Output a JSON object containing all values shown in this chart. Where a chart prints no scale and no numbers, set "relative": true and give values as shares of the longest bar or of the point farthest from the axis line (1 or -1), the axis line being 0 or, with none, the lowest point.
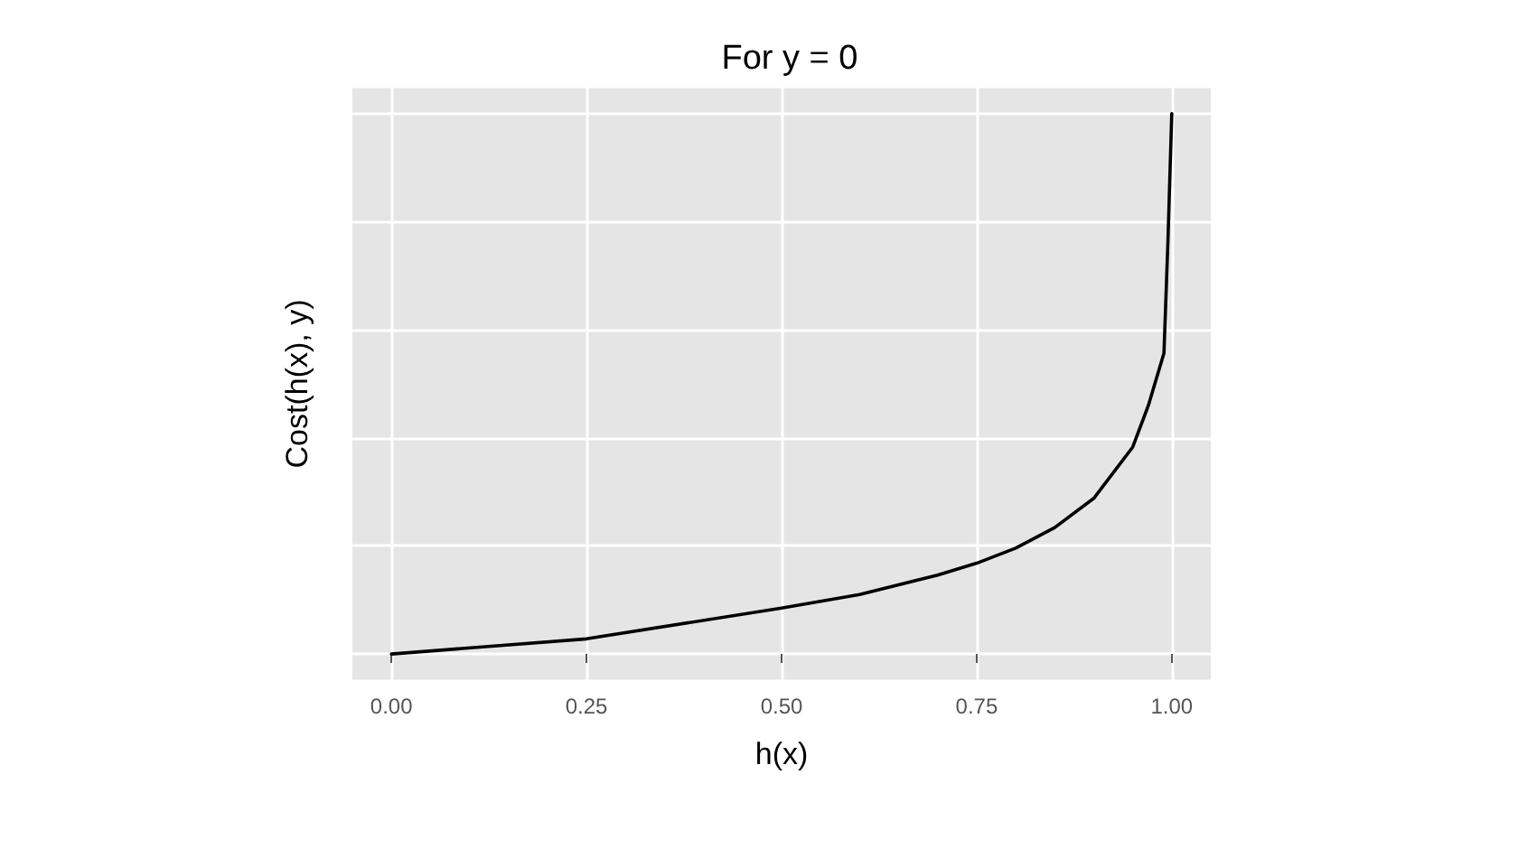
{
  "chart_data": {
    "type": "line",
    "title": "For y = 0",
    "xlabel": "h(x)",
    "ylabel": "Cost(h(x), y)",
    "relative": true,
    "grid": true,
    "marker": "none",
    "line_style": "solid",
    "xlim": [
      -0.05,
      1.05
    ],
    "xticks": [
      {
        "value": 0,
        "label": "0.00"
      },
      {
        "value": 0.25,
        "label": "0.25"
      },
      {
        "value": 0.5,
        "label": "0.50"
      },
      {
        "value": 0.75,
        "label": "0.75"
      },
      {
        "value": 1,
        "label": "1.00"
      }
    ],
    "x": [
      0,
      0.25,
      0.5,
      0.6,
      0.7,
      0.75,
      0.8,
      0.85,
      0.9,
      0.95,
      0.97,
      0.99,
      0.995,
      1
    ],
    "series": [
      {
        "color": "#000000",
        "values": [
          0,
          0.028,
          0.085,
          0.11,
          0.146,
          0.168,
          0.196,
          0.234,
          0.288,
          0.383,
          0.46,
          0.557,
          0.76,
          1
        ]
      }
    ]
  }
}
